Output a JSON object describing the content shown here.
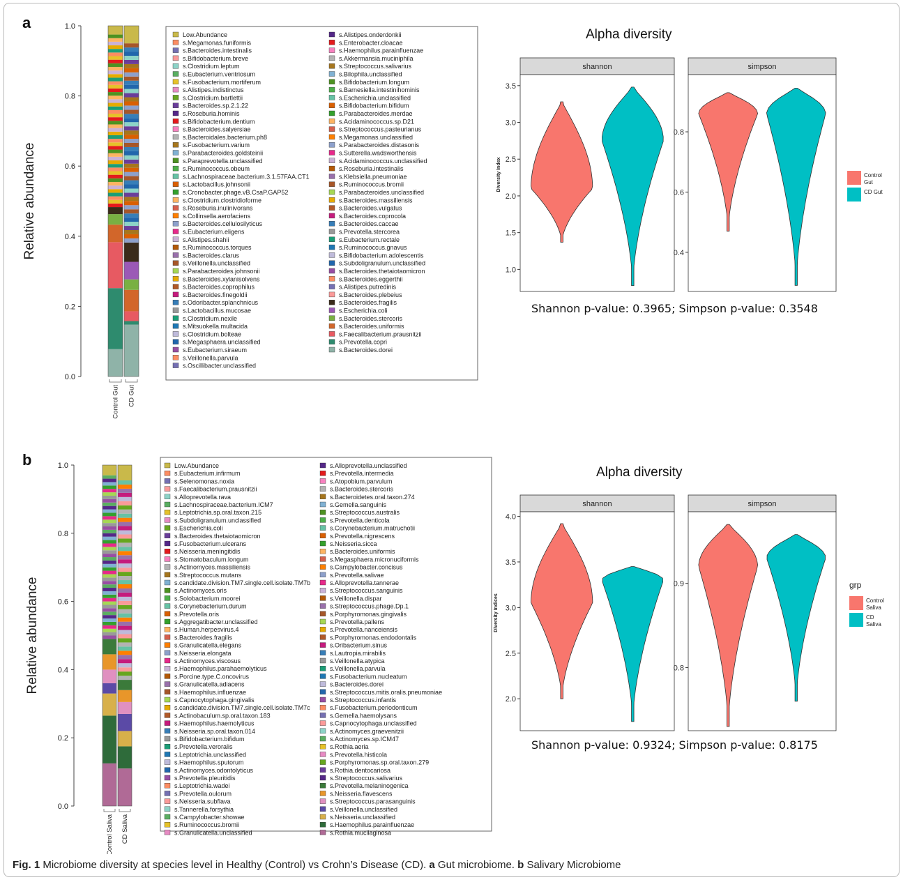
{
  "panels": [
    {
      "label": "a",
      "bar_chart": {
        "type": "bar",
        "stacked": true,
        "ylabel": "Relative abundance",
        "yticks": [
          "1.0",
          "0.8",
          "0.6",
          "0.4",
          "0.2",
          "0.0"
        ],
        "ylim": [
          0,
          1
        ],
        "categories": [
          "Control Gut",
          "CD Gut"
        ],
        "bottom_segments": [
          {
            "name": "s.Bacteroides.dorei",
            "color": "#8fb3a8",
            "values": [
              0.078,
              0.148
            ]
          },
          {
            "name": "s.Prevotella.copri",
            "color": "#2e8b6e",
            "values": [
              0.174,
              0.01
            ]
          },
          {
            "name": "s.Faecalibacterium.prausnitzii",
            "color": "#e75a62",
            "values": [
              0.131,
              0.028
            ]
          },
          {
            "name": "s.Bacteroides.uniformis",
            "color": "#d2662a",
            "values": [
              0.05,
              0.061
            ]
          },
          {
            "name": "s.Bacteroides.stercoris",
            "color": "#79b043",
            "values": [
              0.03,
              0.03
            ]
          },
          {
            "name": "s.Escherichia.coli",
            "color": "#9b59b6",
            "values": [
              0.0,
              0.05
            ]
          },
          {
            "name": "s.Bacteroides.fragilis",
            "color": "#3a2b1a",
            "values": [
              0.02,
              0.055
            ]
          }
        ],
        "top_segment": {
          "name": "Low.Abundance",
          "color": "#c9b94a",
          "values": [
            0.025,
            0.05
          ]
        },
        "legend_left": [
          "Low.Abundance",
          "s.Megamonas.funiformis",
          "s.Bacteroides.intestinalis",
          "s.Bifidobacterium.breve",
          "s.Clostridium.leptum",
          "s.Eubacterium.ventriosum",
          "s.Fusobacterium.mortiferum",
          "s.Alistipes.indistinctus",
          "s.Clostridium.bartlettii",
          "s.Bacteroides.sp.2.1.22",
          "s.Roseburia.hominis",
          "s.Bifidobacterium.dentium",
          "s.Bacteroides.salyersiae",
          "s.Bacteroidales.bacterium.ph8",
          "s.Fusobacterium.varium",
          "s.Parabacteroides.goldsteinii",
          "s.Paraprevotella.unclassified",
          "s.Ruminococcus.obeum",
          "s.Lachnospiraceae.bacterium.3.1.57FAA.CT1",
          "s.Lactobacillus.johnsonii",
          "s.Cronobacter.phage.vB.CsaP.GAP52",
          "s.Clostridium.clostridioforme",
          "s.Roseburia.inulinivorans",
          "s.Collinsella.aerofaciens",
          "s.Bacteroides.cellulosilyticus",
          "s.Eubacterium.eligens",
          "s.Alistipes.shahii",
          "s.Ruminococcus.torques",
          "s.Bacteroides.clarus",
          "s.Veillonella.unclassified",
          "s.Parabacteroides.johnsonii",
          "s.Bacteroides.xylanisolvens",
          "s.Bacteroides.coprophilus",
          "s.Bacteroides.finegoldii",
          "s.Odoribacter.splanchnicus",
          "s.Lactobacillus.mucosae",
          "s.Clostridium.nexile",
          "s.Mitsuokella.multacida",
          "s.Clostridium.bolteae",
          "s.Megasphaera.unclassified",
          "s.Eubacterium.siraeum",
          "s.Veillonella.parvula",
          "s.Oscillibacter.unclassified"
        ],
        "legend_right": [
          "s.Alistipes.onderdonkii",
          "s.Enterobacter.cloacae",
          "s.Haemophilus.parainfluenzae",
          "s.Akkermansia.muciniphila",
          "s.Streptococcus.salivarius",
          "s.Bilophila.unclassified",
          "s.Bifidobacterium.longum",
          "s.Barnesiella.intestinihominis",
          "s.Escherichia.unclassified",
          "s.Bifidobacterium.bifidum",
          "s.Parabacteroides.merdae",
          "s.Acidaminococcus.sp.D21",
          "s.Streptococcus.pasteurianus",
          "s.Megamonas.unclassified",
          "s.Parabacteroides.distasonis",
          "s.Sutterella.wadsworthensis",
          "s.Acidaminococcus.unclassified",
          "s.Roseburia.intestinalis",
          "s.Klebsiella.pneumoniae",
          "s.Ruminococcus.bromii",
          "s.Parabacteroides.unclassified",
          "s.Bacteroides.massiliensis",
          "s.Bacteroides.vulgatus",
          "s.Bacteroides.coprocola",
          "s.Bacteroides.caccae",
          "s.Prevotella.stercorea",
          "s.Eubacterium.rectale",
          "s.Ruminococcus.gnavus",
          "s.Bifidobacterium.adolescentis",
          "s.Subdoligranulum.unclassified",
          "s.Bacteroides.thetaiotaomicron",
          "s.Bacteroides.eggerthii",
          "s.Alistipes.putredinis",
          "s.Bacteroides.plebeius",
          "s.Bacteroides.fragilis",
          "s.Escherichia.coli",
          "s.Bacteroides.stercoris",
          "s.Bacteroides.uniformis",
          "s.Faecalibacterium.prausnitzii",
          "s.Prevotella.copri",
          "s.Bacteroides.dorei"
        ]
      },
      "violin_chart": {
        "type": "violin",
        "title": "Alpha diversity",
        "ylabel": "Diversity Index",
        "facets": [
          {
            "name": "shannon",
            "ylim": [
              0.7,
              3.65
            ],
            "yticks": [
              1.0,
              1.5,
              2.0,
              2.5,
              3.0,
              3.5
            ],
            "groups": [
              {
                "min": 1.37,
                "max": 3.28,
                "peak": 2.1
              },
              {
                "min": 0.78,
                "max": 3.48,
                "peak": 2.75
              }
            ]
          },
          {
            "name": "simpson",
            "ylim": [
              0.27,
              0.99
            ],
            "yticks": [
              0.4,
              0.6,
              0.8
            ],
            "groups": [
              {
                "min": 0.47,
                "max": 0.93,
                "peak": 0.86
              },
              {
                "min": 0.29,
                "max": 0.945,
                "peak": 0.86
              }
            ]
          }
        ],
        "legend": [
          {
            "label1": "Control",
            "label2": "Gut",
            "color": "#f8766d"
          },
          {
            "label1": "CD Gut",
            "label2": "",
            "color": "#00bfc4"
          }
        ],
        "pvalue_text": "Shannon p-value: 0.3965; Simpson p-value: 0.3548"
      }
    },
    {
      "label": "b",
      "bar_chart": {
        "type": "bar",
        "stacked": true,
        "ylabel": "Relative abundance",
        "yticks": [
          "1.0",
          "0.8",
          "0.6",
          "0.4",
          "0.2",
          "0.0"
        ],
        "ylim": [
          0,
          1
        ],
        "categories": [
          "Control Saliva",
          "CD Saliva"
        ],
        "bottom_segments": [
          {
            "name": "s.Rothia.mucilaginosa",
            "color": "#b06a96",
            "values": [
              0.125,
              0.11
            ]
          },
          {
            "name": "s.Haemophilus.parainfluenzae",
            "color": "#2e6b3a",
            "values": [
              0.14,
              0.065
            ]
          },
          {
            "name": "s.Neisseria.unclassified",
            "color": "#d8b04a",
            "values": [
              0.065,
              0.045
            ]
          },
          {
            "name": "s.Veillonella.unclassified",
            "color": "#5b4aa6",
            "values": [
              0.03,
              0.05
            ]
          },
          {
            "name": "s.Streptococcus.parasanguinis",
            "color": "#e090c0",
            "values": [
              0.04,
              0.035
            ]
          },
          {
            "name": "s.Neisseria.flavescens",
            "color": "#e8962a",
            "values": [
              0.045,
              0.035
            ]
          },
          {
            "name": "s.Prevotella.melaninogenica",
            "color": "#3b7a3a",
            "values": [
              0.045,
              0.03
            ]
          }
        ],
        "top_segment": {
          "name": "Low.Abundance",
          "color": "#c9b94a",
          "values": [
            0.03,
            0.045
          ]
        },
        "legend_left": [
          "Low.Abundance",
          "s.Eubacterium.infirmum",
          "s.Selenomonas.noxia",
          "s.Faecalibacterium.prausnitzii",
          "s.Alloprevotella.rava",
          "s.Lachnospiraceae.bacterium.ICM7",
          "s.Leptotrichia.sp.oral.taxon.215",
          "s.Subdoligranulum.unclassified",
          "s.Escherichia.coli",
          "s.Bacteroides.thetaiotaomicron",
          "s.Fusobacterium.ulcerans",
          "s.Neisseria.meningitidis",
          "s.Stomatobaculum.longum",
          "s.Actinomyces.massiliensis",
          "s.Streptococcus.mutans",
          "s.candidate.division.TM7.single.cell.isolate.TM7b",
          "s.Actinomyces.oris",
          "s.Solobacterium.moorei",
          "s.Corynebacterium.durum",
          "s.Prevotella.oris",
          "s.Aggregatibacter.unclassified",
          "s.Human.herpesvirus.4",
          "s.Bacteroides.fragilis",
          "s.Granulicatella.elegans",
          "s.Neisseria.elongata",
          "s.Actinomyces.viscosus",
          "s.Haemophilus.parahaemolyticus",
          "s.Porcine.type.C.oncovirus",
          "s.Granulicatella.adiacens",
          "s.Haemophilus.influenzae",
          "s.Capnocytophaga.gingivalis",
          "s.candidate.division.TM7.single.cell.isolate.TM7c",
          "s.Actinobaculum.sp.oral.taxon.183",
          "s.Haemophilus.haemolyticus",
          "s.Neisseria.sp.oral.taxon.014",
          "s.Bifidobacterium.bifidum",
          "s.Prevotella.veroralis",
          "s.Leptotrichia.unclassified",
          "s.Haemophilus.sputorum",
          "s.Actinomyces.odontolyticus",
          "s.Prevotella.pleuritidis",
          "s.Leptotrichia.wadei",
          "s.Prevotella.oulorum",
          "s.Neisseria.subflava",
          "s.Tannerella.forsythia",
          "s.Campylobacter.showae",
          "s.Ruminococcus.bromii",
          "s.Granulicatella.unclassified"
        ],
        "legend_right": [
          "s.Alloprevotella.unclassified",
          "s.Prevotella.intermedia",
          "s.Atopobium.parvulum",
          "s.Bacteroides.stercoris",
          "s.Bacteroidetes.oral.taxon.274",
          "s.Gemella.sanguinis",
          "s.Streptococcus.australis",
          "s.Prevotella.denticola",
          "s.Corynebacterium.matruchotii",
          "s.Prevotella.nigrescens",
          "s.Neisseria.sicca",
          "s.Bacteroides.uniformis",
          "s.Megasphaera.micronuciformis",
          "s.Campylobacter.concisus",
          "s.Prevotella.salivae",
          "s.Alloprevotella.tannerae",
          "s.Streptococcus.sanguinis",
          "s.Veillonella.dispar",
          "s.Streptococcus.phage.Dp.1",
          "s.Porphyromonas.gingivalis",
          "s.Prevotella.pallens",
          "s.Prevotella.nanceiensis",
          "s.Porphyromonas.endodontalis",
          "s.Oribacterium.sinus",
          "s.Lautropia.mirabilis",
          "s.Veillonella.atypica",
          "s.Veillonella.parvula",
          "s.Fusobacterium.nucleatum",
          "s.Bacteroides.dorei",
          "s.Streptococcus.mitis.oralis.pneumoniae",
          "s.Streptococcus.infantis",
          "s.Fusobacterium.periodonticum",
          "s.Gemella.haemolysans",
          "s.Capnocytophaga.unclassified",
          "s.Actinomyces.graevenitzii",
          "s.Actinomyces.sp.ICM47",
          "s.Rothia.aeria",
          "s.Prevotella.histicola",
          "s.Porphyromonas.sp.oral.taxon.279",
          "s.Rothia.dentocariosa",
          "s.Streptococcus.salivarius",
          "s.Prevotella.melaninogenica",
          "s.Neisseria.flavescens",
          "s.Streptococcus.parasanguinis",
          "s.Veillonella.unclassified",
          "s.Neisseria.unclassified",
          "s.Haemophilus.parainfluenzae",
          "s.Rothia.mucilaginosa"
        ]
      },
      "violin_chart": {
        "type": "violin",
        "title": "Alpha diversity",
        "ylabel": "Diversity Indices",
        "facets": [
          {
            "name": "shannon",
            "ylim": [
              1.65,
              4.05
            ],
            "yticks": [
              2.0,
              2.5,
              3.0,
              3.5,
              4.0
            ],
            "groups": [
              {
                "min": 2.0,
                "max": 3.92,
                "peak": 3.05
              },
              {
                "min": 1.75,
                "max": 3.45,
                "peak": 3.3
              }
            ]
          },
          {
            "name": "simpson",
            "ylim": [
              0.725,
              0.985
            ],
            "yticks": [
              0.8,
              0.9
            ],
            "groups": [
              {
                "min": 0.73,
                "max": 0.97,
                "peak": 0.92
              },
              {
                "min": 0.76,
                "max": 0.958,
                "peak": 0.93
              }
            ]
          }
        ],
        "legend_title": "grp",
        "legend": [
          {
            "label1": "Control",
            "label2": "Saliva",
            "color": "#f8766d"
          },
          {
            "label1": "CD",
            "label2": "Saliva",
            "color": "#00bfc4"
          }
        ],
        "pvalue_text": "Shannon p-value: 0.9324; Simpson p-value: 0.8175"
      }
    }
  ],
  "caption": {
    "fig": "Fig. 1",
    "text1": "  Microbiome diversity at species level in Healthy (Control) vs Crohn’s Disease (CD). ",
    "a": "a",
    "text2": " Gut microbiome. ",
    "b": "b",
    "text3": " Salivary Microbiome"
  }
}
